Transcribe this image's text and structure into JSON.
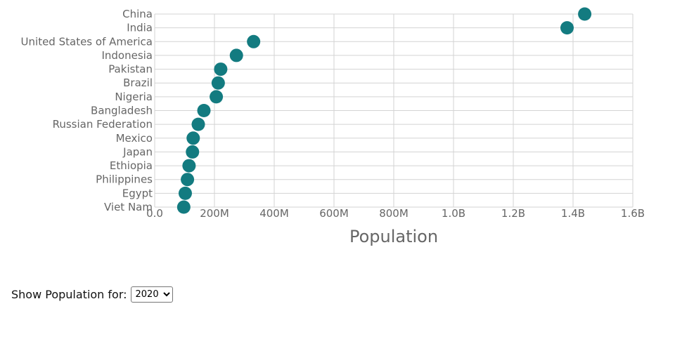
{
  "chart_data": {
    "type": "scatter",
    "xlabel": "Population",
    "ylabel": "",
    "xlim": [
      0,
      1600000000
    ],
    "x_ticks": [
      {
        "value": 0,
        "label": "0.0"
      },
      {
        "value": 200000000,
        "label": "200M"
      },
      {
        "value": 400000000,
        "label": "400M"
      },
      {
        "value": 600000000,
        "label": "600M"
      },
      {
        "value": 800000000,
        "label": "800M"
      },
      {
        "value": 1000000000,
        "label": "1.0B"
      },
      {
        "value": 1200000000,
        "label": "1.2B"
      },
      {
        "value": 1400000000,
        "label": "1.4B"
      },
      {
        "value": 1600000000,
        "label": "1.6B"
      }
    ],
    "grid": true,
    "marker_color": "#137b80",
    "categories": [
      "China",
      "India",
      "United States of America",
      "Indonesia",
      "Pakistan",
      "Brazil",
      "Nigeria",
      "Bangladesh",
      "Russian Federation",
      "Mexico",
      "Japan",
      "Ethiopia",
      "Philippines",
      "Egypt",
      "Viet Nam"
    ],
    "values": [
      1439000000,
      1380000000,
      331000000,
      273500000,
      220900000,
      212600000,
      206100000,
      164700000,
      145900000,
      128900000,
      126500000,
      115000000,
      109600000,
      102300000,
      97300000
    ]
  },
  "controls": {
    "label": "Show Population for:",
    "year_selected": "2020"
  }
}
